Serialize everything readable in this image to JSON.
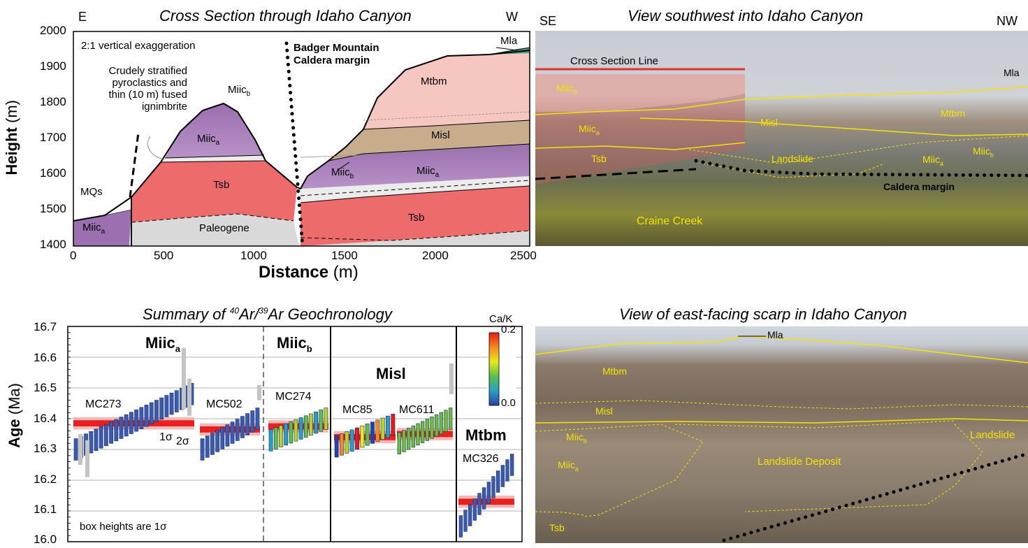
{
  "cross_section": {
    "title": "Cross Section through Idaho Canyon",
    "left_dir": "E",
    "right_dir": "W",
    "ylabel_bold": "Height",
    "ylabel_unit": "(m)",
    "xlabel_bold": "Distance",
    "xlabel_unit": "(m)",
    "yticks": [
      "2000",
      "1900",
      "1800",
      "1700",
      "1600",
      "1500",
      "1400"
    ],
    "xticks": [
      "0",
      "500",
      "1000",
      "1500",
      "2000",
      "2500"
    ],
    "note_exaggeration": "2:1 vertical exaggeration",
    "note_pyro_1": "Crudely stratified",
    "note_pyro_2": "pyroclastics and",
    "note_pyro_3": "thin (10 m) fused",
    "note_pyro_4": "ignimbrite",
    "caldera_1": "Badger Mountain",
    "caldera_2": "Caldera margin",
    "units": {
      "miic_a": "Miic",
      "sub_a": "a",
      "sub_b": "b",
      "tsb": "Tsb",
      "paleogene": "Paleogene",
      "mqs": "MQs",
      "mtbm": "Mtbm",
      "misl": "Misl",
      "mla": "Mla",
      "q": "?"
    },
    "colors": {
      "miic": "#9b6fb0",
      "tsb": "#ee6b6b",
      "paleogene": "#d9d9d9",
      "mtbm": "#f6c7c1",
      "misl": "#c7ad8c",
      "mla": "#4a9a86"
    }
  },
  "photo_top": {
    "title": "View southwest into Idaho Canyon",
    "left_dir": "SE",
    "right_dir": "NW",
    "labels": {
      "csl": "Cross Section Line",
      "mla": "Mla",
      "miic": "Miic",
      "sub_a": "a",
      "sub_b": "b",
      "mtbm": "Mtbm",
      "misl": "Misl",
      "tsb": "Tsb",
      "landslide": "Landslide",
      "caldera": "Caldera margin",
      "craine": "Craine Creek"
    }
  },
  "geochron": {
    "title_pre": "Summary of ",
    "title_sup1": "40",
    "title_mid": "Ar/",
    "title_sup2": "39",
    "title_post": "Ar Geochronology",
    "ylabel_bold": "Age",
    "ylabel_unit": "(Ma)",
    "yticks": [
      "16.7",
      "16.6",
      "16.5",
      "16.4",
      "16.3",
      "16.2",
      "16.1",
      "16.0"
    ],
    "colorbar_title": "Ca/K",
    "colorbar_max": "0.2",
    "colorbar_min": "0.0",
    "note": "box heights are 1σ",
    "sigma1": "1σ",
    "sigma2": "2σ",
    "groups": {
      "miic": "Miic",
      "sub_a": "a",
      "sub_b": "b",
      "misl": "Misl",
      "mtbm": "Mtbm"
    },
    "samples": [
      "MC273",
      "MC502",
      "MC274",
      "MC85",
      "MC611",
      "MC326"
    ]
  },
  "photo_bottom": {
    "title": "View of east-facing scarp in Idaho Canyon",
    "labels": {
      "mla": "Mla",
      "mtbm": "Mtbm",
      "misl": "Misl",
      "miic": "Miic",
      "sub_a": "a",
      "sub_b": "b",
      "landslide_deposit": "Landslide Deposit",
      "landslide": "Landslide",
      "tsb": "Tsb"
    }
  },
  "chart_data": {
    "type": "scatter",
    "title": "Summary of 40Ar/39Ar Geochronology",
    "ylabel": "Age (Ma)",
    "ylim": [
      16.0,
      16.7
    ],
    "note": "box heights are 1σ",
    "colorbar": {
      "label": "Ca/K",
      "min": 0.0,
      "max": 0.2
    },
    "samples": [
      {
        "name": "MC273",
        "unit": "Miic a",
        "weighted_mean": 16.385
      },
      {
        "name": "MC502",
        "unit": "Miic a",
        "weighted_mean": 16.365
      },
      {
        "name": "MC274",
        "unit": "Miic b",
        "weighted_mean": 16.375
      },
      {
        "name": "MC85",
        "unit": "Misl",
        "weighted_mean": 16.34
      },
      {
        "name": "MC611",
        "unit": "Misl",
        "weighted_mean": 16.35
      },
      {
        "name": "MC326",
        "unit": "Mtbm",
        "weighted_mean": 16.13
      }
    ]
  }
}
